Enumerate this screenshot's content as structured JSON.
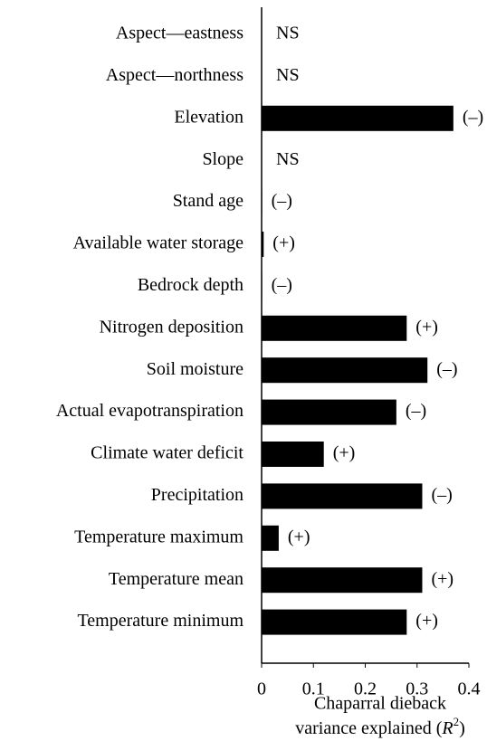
{
  "chart_data": {
    "type": "hbar",
    "categories": [
      "Aspect—eastness",
      "Aspect—northness",
      "Elevation",
      "Slope",
      "Stand age",
      "Available water storage",
      "Bedrock depth",
      "Nitrogen deposition",
      "Soil moisture",
      "Actual evapotranspiration",
      "Climate water deficit",
      "Precipitation",
      "Temperature maximum",
      "Temperature mean",
      "Temperature minimum"
    ],
    "values": [
      null,
      null,
      0.37,
      null,
      0.001,
      0.004,
      0.001,
      0.28,
      0.32,
      0.26,
      0.12,
      0.31,
      0.033,
      0.31,
      0.28
    ],
    "value_labels": [
      "NS",
      "NS",
      "(–)",
      "NS",
      "(–)",
      "(+)",
      "(–)",
      "(+)",
      "(–)",
      "(–)",
      "(+)",
      "(–)",
      "(+)",
      "(+)",
      "(+)"
    ],
    "color": "#000000",
    "xlim": [
      0,
      0.4
    ],
    "xticks": [
      0,
      0.1,
      0.2,
      0.3,
      0.4
    ],
    "x_label": {
      "line1": "Chaparral dieback",
      "line2": "variance explained (",
      "symbol": "R",
      "exponent": "2",
      "close": ")"
    }
  }
}
